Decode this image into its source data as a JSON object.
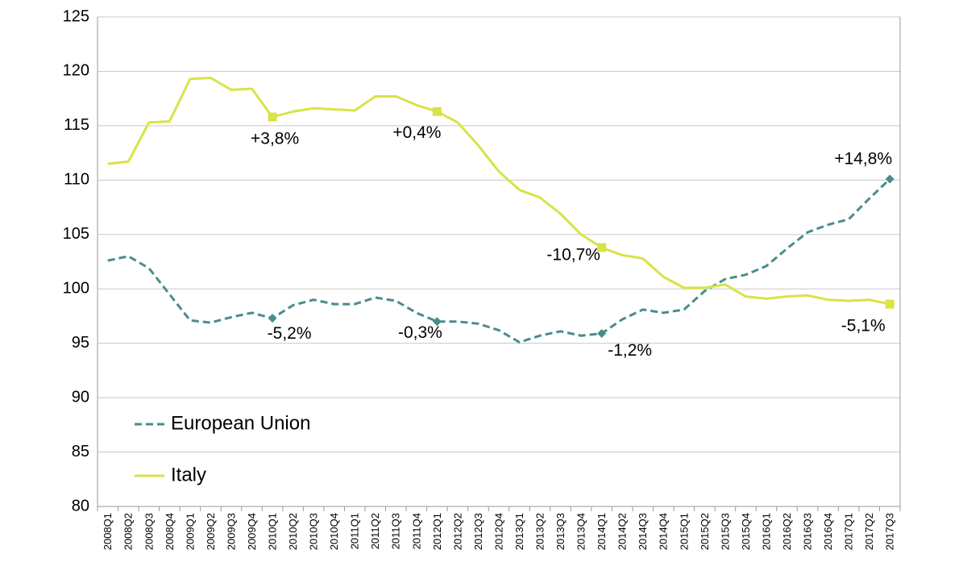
{
  "chart_data": {
    "type": "line",
    "title": "",
    "xlabel": "",
    "ylabel": "",
    "ylim": [
      80,
      125
    ],
    "yticks": [
      80,
      85,
      90,
      95,
      100,
      105,
      110,
      115,
      120,
      125
    ],
    "grid": true,
    "legend_position": "bottom-left",
    "categories": [
      "2008Q1",
      "2008Q2",
      "2008Q3",
      "2008Q4",
      "2009Q1",
      "2009Q2",
      "2009Q3",
      "2009Q4",
      "2010Q1",
      "2010Q2",
      "2010Q3",
      "2010Q4",
      "2011Q1",
      "2011Q2",
      "2011Q3",
      "2011Q4",
      "2012Q1",
      "2012Q2",
      "2012Q3",
      "2012Q4",
      "2013Q1",
      "2013Q2",
      "2013Q3",
      "2013Q4",
      "2014Q1",
      "2014Q2",
      "2014Q3",
      "2014Q4",
      "2015Q1",
      "2015Q2",
      "2015Q3",
      "2015Q4",
      "2016Q1",
      "2016Q2",
      "2016Q3",
      "2016Q4",
      "2017Q1",
      "2017Q2",
      "2017Q3"
    ],
    "series": [
      {
        "name": "European Union",
        "color": "#4a8c8c",
        "style": "dashed",
        "marker": "diamond",
        "values": [
          102.6,
          103.0,
          101.9,
          99.5,
          97.1,
          96.9,
          97.4,
          97.8,
          97.3,
          98.5,
          99.0,
          98.6,
          98.6,
          99.2,
          98.9,
          97.8,
          97.0,
          97.0,
          96.8,
          96.2,
          95.1,
          95.7,
          96.1,
          95.7,
          95.9,
          97.2,
          98.1,
          97.8,
          98.1,
          99.8,
          100.9,
          101.3,
          102.1,
          103.7,
          105.2,
          105.9,
          106.4,
          108.3,
          110.1
        ],
        "markers": [
          8,
          16,
          24,
          38
        ]
      },
      {
        "name": "Italy",
        "color": "#d8e346",
        "style": "solid",
        "marker": "square",
        "values": [
          111.5,
          111.7,
          115.3,
          115.4,
          119.3,
          119.4,
          118.3,
          118.4,
          115.8,
          116.3,
          116.6,
          116.5,
          116.4,
          117.7,
          117.7,
          116.9,
          116.3,
          115.3,
          113.2,
          110.8,
          109.1,
          108.4,
          106.9,
          105.0,
          103.8,
          103.1,
          102.8,
          101.1,
          100.1,
          100.1,
          100.4,
          99.3,
          99.1,
          99.3,
          99.4,
          99.0,
          98.9,
          99.0,
          98.6
        ],
        "markers": [
          8,
          16,
          24,
          38
        ]
      }
    ],
    "annotations": [
      {
        "text": "+3,8%",
        "series": "Italy",
        "index": 8
      },
      {
        "text": "+0,4%",
        "series": "Italy",
        "index": 16
      },
      {
        "text": "-10,7%",
        "series": "Italy",
        "index": 24
      },
      {
        "text": "-5,1%",
        "series": "Italy",
        "index": 38
      },
      {
        "text": "-5,2%",
        "series": "European Union",
        "index": 8
      },
      {
        "text": "-0,3%",
        "series": "European Union",
        "index": 16
      },
      {
        "text": "-1,2%",
        "series": "European Union",
        "index": 24
      },
      {
        "text": "+14,8%",
        "series": "European Union",
        "index": 38
      }
    ]
  }
}
